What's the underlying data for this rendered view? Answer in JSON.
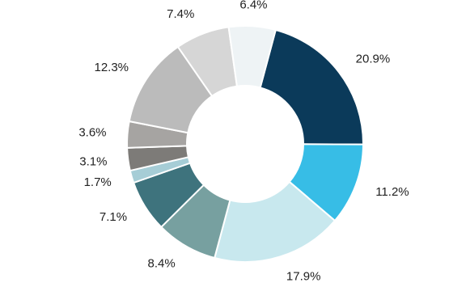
{
  "chart_data": {
    "type": "donut",
    "categories": [
      null,
      null,
      null,
      null,
      null,
      null,
      null,
      null,
      null,
      null,
      null
    ],
    "values": [
      20.9,
      11.2,
      17.9,
      8.4,
      7.1,
      1.7,
      3.1,
      3.6,
      12.3,
      7.4,
      6.4
    ],
    "value_labels": [
      "20.9%",
      "11.2%",
      "17.9%",
      "8.4%",
      "7.1%",
      "1.7%",
      "3.1%",
      "3.6%",
      "12.3%",
      "7.4%",
      "6.4%"
    ],
    "colors": [
      "#0b3a5a",
      "#37bde6",
      "#c8e8ee",
      "#77a0a0",
      "#3e737d",
      "#a6cdd6",
      "#7d7b78",
      "#a6a4a2",
      "#bbbbbb",
      "#d6d6d6",
      "#eef3f5"
    ]
  }
}
